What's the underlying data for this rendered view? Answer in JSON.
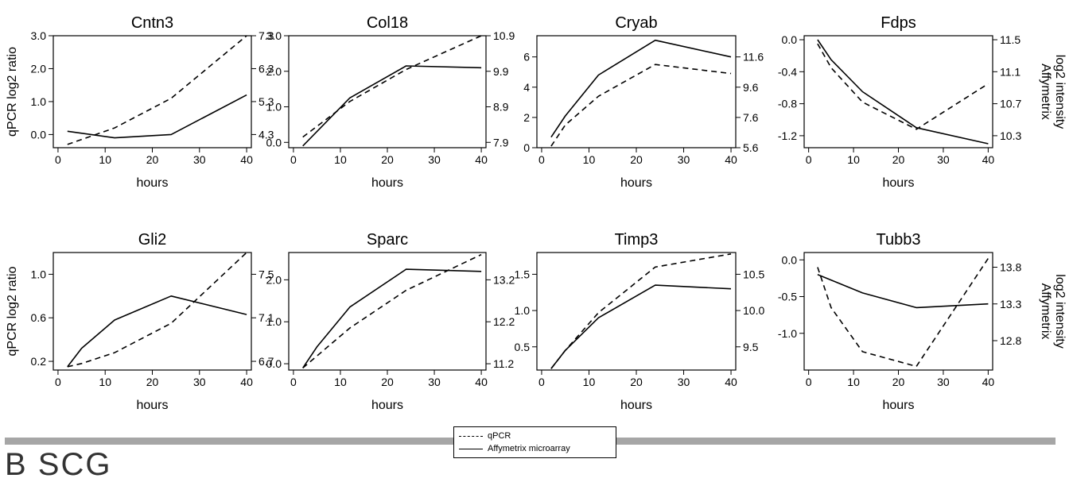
{
  "legend": {
    "qpcr_label": "qPCR",
    "affy_label": "Affymetrix microarray"
  },
  "section_label": "B  SCG",
  "colors": {
    "line": "#000000",
    "divider": "#a6a6a6"
  },
  "chart_data": [
    {
      "type": "line",
      "title": "Cntn3",
      "xlabel": "hours",
      "ylabel": "qPCR log2 ratio",
      "y2label": "",
      "xticks": [
        0,
        10,
        20,
        30,
        40
      ],
      "xlim": [
        -1,
        41
      ],
      "yticks": [
        0.0,
        1.0,
        2.0,
        3.0
      ],
      "ytick_labels": [
        "0.0",
        "1.0",
        "2.0",
        "3.0"
      ],
      "ylim": [
        -0.4,
        3.0
      ],
      "y2ticks": [
        4.3,
        5.3,
        6.3,
        7.3
      ],
      "y2tick_labels": [
        "4.3",
        "5.3",
        "6.3",
        "7.3"
      ],
      "y2lim": [
        3.9,
        7.3
      ],
      "series": [
        {
          "name": "qPCR",
          "axis": "left",
          "x": [
            2,
            12,
            24,
            40
          ],
          "y": [
            -0.3,
            0.2,
            1.1,
            3.0
          ]
        },
        {
          "name": "Affymetrix microarray",
          "axis": "right",
          "x": [
            2,
            12,
            24,
            40
          ],
          "y": [
            4.4,
            4.2,
            4.3,
            5.5
          ]
        }
      ]
    },
    {
      "type": "line",
      "title": "Col18",
      "xlabel": "hours",
      "ylabel": "",
      "y2label": "",
      "xticks": [
        0,
        10,
        20,
        30,
        40
      ],
      "xlim": [
        -1,
        41
      ],
      "yticks": [
        0.0,
        1.0,
        2.0,
        3.0
      ],
      "ytick_labels": [
        "0.0",
        "1.0",
        "2.0",
        "3.0"
      ],
      "ylim": [
        -0.15,
        3.0
      ],
      "y2ticks": [
        7.9,
        8.9,
        9.9,
        10.9
      ],
      "y2tick_labels": [
        "7.9",
        "8.9",
        "9.9",
        "10.9"
      ],
      "y2lim": [
        7.75,
        10.9
      ],
      "series": [
        {
          "name": "qPCR",
          "axis": "left",
          "x": [
            2,
            12,
            24,
            40
          ],
          "y": [
            0.15,
            1.15,
            2.05,
            3.0
          ]
        },
        {
          "name": "Affymetrix microarray",
          "axis": "right",
          "x": [
            2,
            12,
            24,
            40
          ],
          "y": [
            7.8,
            9.15,
            10.05,
            10.0
          ]
        }
      ]
    },
    {
      "type": "line",
      "title": "Cryab",
      "xlabel": "hours",
      "ylabel": "",
      "y2label": "",
      "xticks": [
        0,
        10,
        20,
        30,
        40
      ],
      "xlim": [
        -1,
        41
      ],
      "yticks": [
        0,
        2,
        4,
        6
      ],
      "ytick_labels": [
        "0",
        "2",
        "4",
        "6"
      ],
      "ylim": [
        0,
        7.4
      ],
      "y2ticks": [
        5.6,
        7.6,
        9.6,
        11.6
      ],
      "y2tick_labels": [
        "5.6",
        "7.6",
        "9.6",
        "11.6"
      ],
      "y2lim": [
        5.6,
        13.0
      ],
      "series": [
        {
          "name": "qPCR",
          "axis": "left",
          "x": [
            2,
            5,
            12,
            24,
            40
          ],
          "y": [
            0.1,
            1.5,
            3.4,
            5.5,
            4.9
          ]
        },
        {
          "name": "Affymetrix microarray",
          "axis": "right",
          "x": [
            2,
            5,
            12,
            24,
            40
          ],
          "y": [
            6.3,
            7.7,
            10.4,
            12.7,
            11.6
          ]
        }
      ]
    },
    {
      "type": "line",
      "title": "Fdps",
      "xlabel": "hours",
      "ylabel": "",
      "y2label": "Affymetrix log2 intensity",
      "xticks": [
        0,
        10,
        20,
        30,
        40
      ],
      "xlim": [
        -1,
        41
      ],
      "yticks": [
        0.0,
        -0.4,
        -0.8,
        -1.2
      ],
      "ytick_labels": [
        "0.0",
        "-0.4",
        "-0.8",
        "-1.2"
      ],
      "ylim": [
        -1.35,
        0.05
      ],
      "y2ticks": [
        10.3,
        10.7,
        11.1,
        11.5
      ],
      "y2tick_labels": [
        "10.3",
        "10.7",
        "11.1",
        "11.5"
      ],
      "y2lim": [
        10.15,
        11.55
      ],
      "series": [
        {
          "name": "qPCR",
          "axis": "left",
          "x": [
            2,
            5,
            12,
            24,
            40
          ],
          "y": [
            -0.05,
            -0.35,
            -0.78,
            -1.12,
            -0.55
          ]
        },
        {
          "name": "Affymetrix microarray",
          "axis": "right",
          "x": [
            2,
            5,
            12,
            24,
            40
          ],
          "y": [
            11.5,
            11.25,
            10.85,
            10.4,
            10.2
          ]
        }
      ]
    },
    {
      "type": "line",
      "title": "Gli2",
      "xlabel": "hours",
      "ylabel": "qPCR log2 ratio",
      "y2label": "",
      "xticks": [
        0,
        10,
        20,
        30,
        40
      ],
      "xlim": [
        -1,
        41
      ],
      "yticks": [
        0.2,
        0.6,
        1.0
      ],
      "ytick_labels": [
        "0.2",
        "0.6",
        "1.0"
      ],
      "ylim": [
        0.12,
        1.2
      ],
      "y2ticks": [
        6.7,
        7.1,
        7.5
      ],
      "y2tick_labels": [
        "6.7",
        "7.1",
        "7.5"
      ],
      "y2lim": [
        6.62,
        7.7
      ],
      "series": [
        {
          "name": "qPCR",
          "axis": "left",
          "x": [
            2,
            5,
            12,
            24,
            40
          ],
          "y": [
            0.15,
            0.18,
            0.28,
            0.55,
            1.2
          ]
        },
        {
          "name": "Affymetrix microarray",
          "axis": "right",
          "x": [
            2,
            5,
            12,
            24,
            40
          ],
          "y": [
            6.65,
            6.82,
            7.08,
            7.3,
            7.13
          ]
        }
      ]
    },
    {
      "type": "line",
      "title": "Sparc",
      "xlabel": "hours",
      "ylabel": "",
      "y2label": "",
      "xticks": [
        0,
        10,
        20,
        30,
        40
      ],
      "xlim": [
        -1,
        41
      ],
      "yticks": [
        0.0,
        1.0,
        2.0
      ],
      "ytick_labels": [
        "0.0",
        "1.0",
        "2.0"
      ],
      "ylim": [
        -0.15,
        2.65
      ],
      "y2ticks": [
        11.2,
        12.2,
        13.2
      ],
      "y2tick_labels": [
        "11.2",
        "12.2",
        "13.2"
      ],
      "y2lim": [
        11.05,
        13.85
      ],
      "series": [
        {
          "name": "qPCR",
          "axis": "left",
          "x": [
            2,
            12,
            24,
            40
          ],
          "y": [
            -0.1,
            0.85,
            1.75,
            2.6
          ]
        },
        {
          "name": "Affymetrix microarray",
          "axis": "right",
          "x": [
            2,
            5,
            12,
            24,
            40
          ],
          "y": [
            11.1,
            11.6,
            12.55,
            13.45,
            13.4
          ]
        }
      ]
    },
    {
      "type": "line",
      "title": "Timp3",
      "xlabel": "hours",
      "ylabel": "",
      "y2label": "",
      "xticks": [
        0,
        10,
        20,
        30,
        40
      ],
      "xlim": [
        -1,
        41
      ],
      "yticks": [
        0.5,
        1.0,
        1.5
      ],
      "ytick_labels": [
        "0.5",
        "1.0",
        "1.5"
      ],
      "ylim": [
        0.18,
        1.8
      ],
      "y2ticks": [
        9.5,
        10.0,
        10.5
      ],
      "y2tick_labels": [
        "9.5",
        "10.0",
        "10.5"
      ],
      "y2lim": [
        9.18,
        10.8
      ],
      "series": [
        {
          "name": "qPCR",
          "axis": "left",
          "x": [
            2,
            5,
            12,
            24,
            40
          ],
          "y": [
            0.2,
            0.45,
            0.97,
            1.6,
            1.78
          ]
        },
        {
          "name": "Affymetrix microarray",
          "axis": "right",
          "x": [
            2,
            5,
            12,
            24,
            40
          ],
          "y": [
            9.2,
            9.45,
            9.9,
            10.35,
            10.3
          ]
        }
      ]
    },
    {
      "type": "line",
      "title": "Tubb3",
      "xlabel": "hours",
      "ylabel": "",
      "y2label": "Affymetrix log2 intensity",
      "xticks": [
        0,
        10,
        20,
        30,
        40
      ],
      "xlim": [
        -1,
        41
      ],
      "yticks": [
        0.0,
        -0.5,
        -1.0
      ],
      "ytick_labels": [
        "0.0",
        "-0.5",
        "-1.0"
      ],
      "ylim": [
        -1.5,
        0.1
      ],
      "y2ticks": [
        12.8,
        13.3,
        13.8
      ],
      "y2tick_labels": [
        "12.8",
        "13.3",
        "13.8"
      ],
      "y2lim": [
        12.4,
        14.0
      ],
      "series": [
        {
          "name": "qPCR",
          "axis": "left",
          "x": [
            2,
            5,
            12,
            24,
            40
          ],
          "y": [
            -0.1,
            -0.65,
            -1.25,
            -1.45,
            0.02
          ]
        },
        {
          "name": "Affymetrix microarray",
          "axis": "right",
          "x": [
            2,
            12,
            24,
            40
          ],
          "y": [
            13.7,
            13.45,
            13.25,
            13.3
          ]
        }
      ]
    }
  ]
}
